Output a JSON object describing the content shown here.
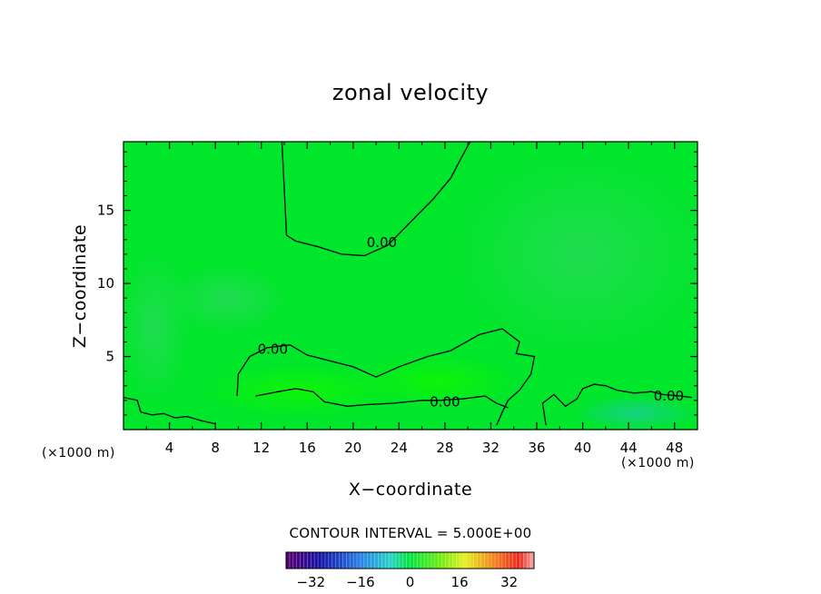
{
  "chart_data": {
    "type": "heatmap",
    "title": "zonal velocity",
    "xlabel": "X−coordinate",
    "ylabel": "Z−coordinate",
    "x_unit_label": "(×1000 m)",
    "z_unit_label": "(×1000 m)",
    "xlim": [
      0,
      50
    ],
    "ylim": [
      0,
      19.7
    ],
    "x_ticks": [
      4,
      8,
      12,
      16,
      20,
      24,
      28,
      32,
      36,
      40,
      44,
      48
    ],
    "y_ticks": [
      5,
      10,
      15
    ],
    "contour_label": "0.00",
    "contour_interval_text": "CONTOUR INTERVAL = 5.000E+00",
    "colorbar": {
      "range": [
        -40,
        40
      ],
      "tick_values": [
        -32,
        -16,
        0,
        16,
        32
      ],
      "tick_labels": [
        "−32",
        "−16",
        "0",
        "16",
        "32"
      ]
    },
    "field_colors": {
      "background": "#00e62a",
      "negative_weak": "#2adf55",
      "positive_weak": "#1ff400",
      "contour_line": "#000000"
    },
    "zero_contours": [
      {
        "label": "0.00",
        "label_at": [
          22.5,
          12.8
        ],
        "points": [
          [
            13.8,
            19.7
          ],
          [
            14.0,
            16.5
          ],
          [
            14.2,
            13.3
          ],
          [
            15.0,
            12.9
          ],
          [
            17.0,
            12.5
          ],
          [
            19.0,
            12.0
          ],
          [
            21.0,
            11.9
          ],
          [
            23.0,
            12.6
          ],
          [
            25.0,
            14.2
          ],
          [
            27.0,
            15.8
          ],
          [
            28.5,
            17.2
          ],
          [
            29.5,
            18.7
          ],
          [
            30.2,
            19.7
          ]
        ]
      },
      {
        "label": "0.00",
        "label_at": [
          13.0,
          5.5
        ],
        "points": [
          [
            9.9,
            2.3
          ],
          [
            10.0,
            3.8
          ],
          [
            11.0,
            5.0
          ],
          [
            12.5,
            5.6
          ],
          [
            14.5,
            5.8
          ],
          [
            16.0,
            5.1
          ],
          [
            18.0,
            4.7
          ],
          [
            20.0,
            4.3
          ],
          [
            22.0,
            3.6
          ],
          [
            24.0,
            4.3
          ],
          [
            26.5,
            5.0
          ],
          [
            28.5,
            5.4
          ],
          [
            31.0,
            6.5
          ],
          [
            33.0,
            6.9
          ],
          [
            34.5,
            6.0
          ],
          [
            34.2,
            5.2
          ],
          [
            35.8,
            5.0
          ],
          [
            35.5,
            3.8
          ],
          [
            34.5,
            2.7
          ],
          [
            33.5,
            2.0
          ],
          [
            33.0,
            1.2
          ],
          [
            32.5,
            0.3
          ]
        ]
      },
      {
        "label": "0.00",
        "label_at": [
          28.0,
          1.9
        ],
        "points": [
          [
            11.5,
            2.3
          ],
          [
            13.5,
            2.6
          ],
          [
            15.0,
            2.8
          ],
          [
            16.5,
            2.6
          ],
          [
            17.5,
            1.9
          ],
          [
            19.5,
            1.6
          ],
          [
            21.0,
            1.7
          ],
          [
            23.5,
            1.8
          ],
          [
            26.0,
            2.0
          ],
          [
            27.5,
            2.0
          ],
          [
            29.5,
            2.1
          ],
          [
            31.5,
            2.3
          ],
          [
            32.5,
            1.8
          ],
          [
            33.5,
            1.5
          ]
        ]
      },
      {
        "label": "0.00",
        "label_at": [
          47.5,
          2.3
        ],
        "points": [
          [
            36.8,
            0.3
          ],
          [
            36.5,
            1.8
          ],
          [
            37.5,
            2.4
          ],
          [
            38.5,
            1.6
          ],
          [
            39.5,
            2.1
          ],
          [
            40.0,
            2.8
          ],
          [
            41.0,
            3.1
          ],
          [
            42.0,
            3.0
          ],
          [
            43.0,
            2.7
          ],
          [
            44.5,
            2.5
          ],
          [
            46.0,
            2.6
          ],
          [
            47.0,
            2.4
          ],
          [
            48.5,
            2.3
          ],
          [
            49.5,
            2.2
          ]
        ]
      },
      {
        "label": "",
        "points": [
          [
            0.0,
            2.2
          ],
          [
            1.2,
            2.0
          ],
          [
            1.5,
            1.2
          ],
          [
            2.5,
            1.0
          ],
          [
            3.5,
            1.1
          ],
          [
            4.5,
            0.8
          ],
          [
            5.5,
            0.9
          ],
          [
            6.8,
            0.6
          ],
          [
            8.0,
            0.4
          ]
        ]
      }
    ]
  }
}
